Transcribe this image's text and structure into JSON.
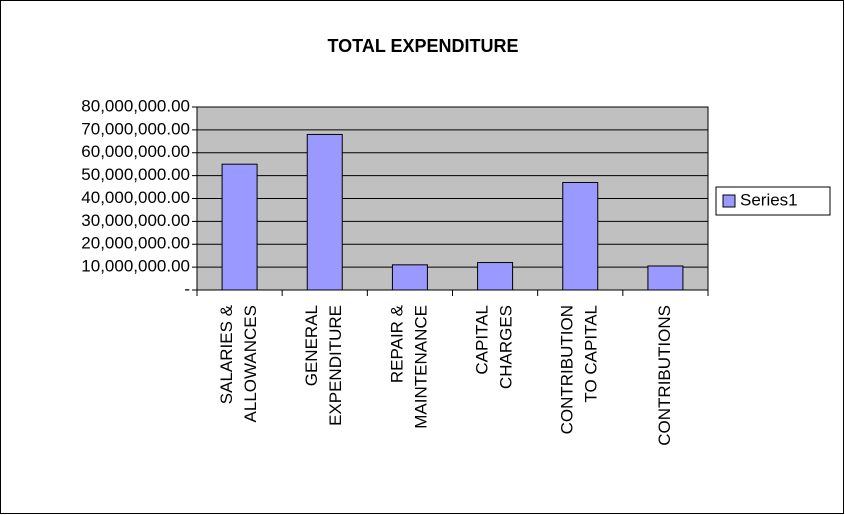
{
  "chart_data": {
    "type": "bar",
    "title": "TOTAL EXPENDITURE",
    "categories": [
      [
        "SALARIES &",
        "ALLOWANCES"
      ],
      [
        "GENERAL",
        "EXPENDITURE"
      ],
      [
        "REPAIR &",
        "MAINTENANCE"
      ],
      [
        "CAPITAL",
        "CHARGES"
      ],
      [
        "CONTRIBUTION",
        "TO CAPITAL"
      ],
      [
        "CONTRIBUTIONS"
      ]
    ],
    "series": [
      {
        "name": "Series1",
        "color": "#9999ff",
        "values": [
          55000000,
          68000000,
          11000000,
          12000000,
          47000000,
          10500000
        ]
      }
    ],
    "ylim": [
      0,
      80000000
    ],
    "yticks": [
      {
        "value": 0,
        "label": "-"
      },
      {
        "value": 10000000,
        "label": "10,000,000.00"
      },
      {
        "value": 20000000,
        "label": "20,000,000.00"
      },
      {
        "value": 30000000,
        "label": "30,000,000.00"
      },
      {
        "value": 40000000,
        "label": "40,000,000.00"
      },
      {
        "value": 50000000,
        "label": "50,000,000.00"
      },
      {
        "value": 60000000,
        "label": "60,000,000.00"
      },
      {
        "value": 70000000,
        "label": "70,000,000.00"
      },
      {
        "value": 80000000,
        "label": "80,000,000.00"
      }
    ],
    "grid": true,
    "legend": "right"
  }
}
